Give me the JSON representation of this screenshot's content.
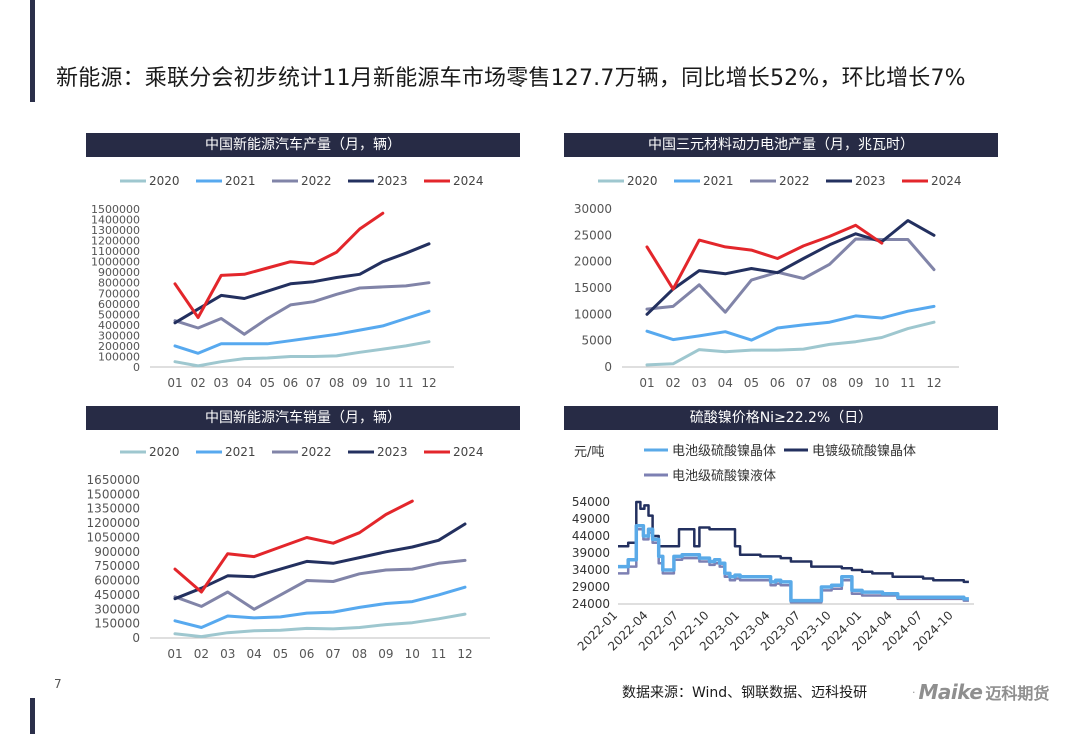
{
  "headline": "新能源：乘联分会初步统计11月新能源车市场零售127.7万辆，同比增长52%，环比增长7%",
  "page_number": "7",
  "source": "数据来源：Wind、钢联数据、迈科投研",
  "logo": {
    "latin": "Maike",
    "cn": "迈科期货",
    "mark": "·"
  },
  "colors": {
    "panel_title_bg": "#272b45",
    "accent": "#2b2f4a"
  },
  "chart_data": [
    {
      "id": "nev-production",
      "type": "line",
      "title": "中国新能源汽车产量（月，辆）",
      "categories": [
        "01",
        "02",
        "03",
        "04",
        "05",
        "06",
        "07",
        "08",
        "09",
        "10",
        "11",
        "12"
      ],
      "ylim": [
        0,
        1500000
      ],
      "yticks": [
        0,
        100000,
        200000,
        300000,
        400000,
        500000,
        600000,
        700000,
        800000,
        900000,
        1000000,
        1100000,
        1200000,
        1300000,
        1400000,
        1500000
      ],
      "series": [
        {
          "name": "2020",
          "color": "#9ec7cf",
          "values": [
            50000,
            10000,
            50000,
            80000,
            85000,
            100000,
            100000,
            105000,
            140000,
            170000,
            200000,
            240000
          ]
        },
        {
          "name": "2021",
          "color": "#57a9ef",
          "values": [
            200000,
            130000,
            220000,
            220000,
            220000,
            250000,
            280000,
            310000,
            350000,
            390000,
            460000,
            530000
          ]
        },
        {
          "name": "2022",
          "color": "#8184a8",
          "values": [
            440000,
            370000,
            460000,
            310000,
            460000,
            590000,
            620000,
            690000,
            750000,
            760000,
            770000,
            800000
          ]
        },
        {
          "name": "2023",
          "color": "#23305f",
          "values": [
            420000,
            550000,
            680000,
            650000,
            720000,
            790000,
            810000,
            850000,
            880000,
            1000000,
            1080000,
            1170000
          ]
        },
        {
          "name": "2024",
          "color": "#e3262b",
          "values": [
            790000,
            470000,
            870000,
            880000,
            940000,
            1000000,
            980000,
            1090000,
            1310000,
            1460000,
            null,
            null
          ]
        }
      ]
    },
    {
      "id": "ternary-battery",
      "type": "line",
      "title": "中国三元材料动力电池产量（月，兆瓦时）",
      "categories": [
        "01",
        "02",
        "03",
        "04",
        "05",
        "06",
        "07",
        "08",
        "09",
        "10",
        "11",
        "12"
      ],
      "ylim": [
        0,
        30000
      ],
      "yticks": [
        0,
        5000,
        10000,
        15000,
        20000,
        25000,
        30000
      ],
      "series": [
        {
          "name": "2020",
          "color": "#9ec7cf",
          "values": [
            400,
            600,
            3300,
            2900,
            3200,
            3200,
            3400,
            4300,
            4800,
            5600,
            7300,
            8500
          ]
        },
        {
          "name": "2021",
          "color": "#57a9ef",
          "values": [
            6800,
            5200,
            5900,
            6700,
            5100,
            7400,
            8000,
            8500,
            9700,
            9300,
            10600,
            11500
          ]
        },
        {
          "name": "2022",
          "color": "#8184a8",
          "values": [
            11000,
            11500,
            15600,
            10400,
            16500,
            18000,
            16800,
            19500,
            24300,
            24200,
            24200,
            18500
          ]
        },
        {
          "name": "2023",
          "color": "#23305f",
          "values": [
            10000,
            14800,
            18300,
            17700,
            18700,
            17900,
            20600,
            23200,
            25300,
            23800,
            27800,
            25000
          ]
        },
        {
          "name": "2024",
          "color": "#e3262b",
          "values": [
            22800,
            14800,
            24100,
            22800,
            22200,
            20600,
            23000,
            24800,
            26900,
            23500,
            null,
            null
          ]
        }
      ]
    },
    {
      "id": "nev-sales",
      "type": "line",
      "title": "中国新能源汽车销量（月，辆）",
      "categories": [
        "01",
        "02",
        "03",
        "04",
        "05",
        "06",
        "07",
        "08",
        "09",
        "10",
        "11",
        "12"
      ],
      "ylim": [
        0,
        1650000
      ],
      "yticks": [
        0,
        150000,
        300000,
        450000,
        600000,
        750000,
        900000,
        1050000,
        1200000,
        1350000,
        1500000,
        1650000
      ],
      "series": [
        {
          "name": "2020",
          "color": "#9ec7cf",
          "values": [
            45000,
            15000,
            55000,
            75000,
            80000,
            100000,
            95000,
            110000,
            140000,
            160000,
            200000,
            250000
          ]
        },
        {
          "name": "2021",
          "color": "#57a9ef",
          "values": [
            180000,
            110000,
            230000,
            210000,
            220000,
            260000,
            270000,
            320000,
            360000,
            380000,
            450000,
            530000
          ]
        },
        {
          "name": "2022",
          "color": "#8184a8",
          "values": [
            430000,
            330000,
            480000,
            300000,
            450000,
            600000,
            590000,
            670000,
            710000,
            720000,
            780000,
            810000
          ]
        },
        {
          "name": "2023",
          "color": "#23305f",
          "values": [
            410000,
            520000,
            650000,
            640000,
            720000,
            800000,
            780000,
            840000,
            900000,
            950000,
            1020000,
            1190000
          ]
        },
        {
          "name": "2024",
          "color": "#e3262b",
          "values": [
            720000,
            480000,
            880000,
            850000,
            950000,
            1050000,
            990000,
            1100000,
            1290000,
            1430000,
            null,
            null
          ]
        }
      ]
    },
    {
      "id": "nickel-sulfate",
      "type": "line",
      "title": "硫酸镍价格Ni≥22.2%（日）",
      "unit_label": "元/吨",
      "ylim": [
        24000,
        54000
      ],
      "yticks": [
        24000,
        29000,
        34000,
        39000,
        44000,
        49000,
        54000
      ],
      "xlim": [
        0,
        35
      ],
      "x_ticks": [
        "2022-01",
        "2022-04",
        "2022-07",
        "2022-10",
        "2023-01",
        "2023-04",
        "2023-07",
        "2023-10",
        "2024-01",
        "2024-04",
        "2024-07",
        "2024-10"
      ],
      "series": [
        {
          "name": "电池级硫酸镍晶体",
          "color": "#5aaae8",
          "x": [
            0,
            1,
            1.8,
            2.5,
            3,
            3.4,
            4,
            4.4,
            5,
            5.5,
            6.3,
            7,
            8,
            9,
            9.5,
            10,
            10.5,
            11,
            11.5,
            12,
            13,
            14,
            15,
            15.5,
            16,
            17,
            17.5,
            18,
            19,
            20,
            20.5,
            21,
            22,
            23,
            24,
            25,
            26,
            27,
            27.5,
            28,
            28.5,
            29,
            30,
            31,
            32,
            33,
            34,
            34.5
          ],
          "values": [
            35000,
            37000,
            47000,
            44000,
            46000,
            43000,
            38000,
            34000,
            34000,
            38000,
            38500,
            38500,
            37500,
            36500,
            37000,
            36000,
            33000,
            32000,
            32500,
            32000,
            32000,
            32000,
            30500,
            31000,
            30500,
            25000,
            25000,
            25000,
            25000,
            29000,
            29000,
            29500,
            32000,
            28000,
            27500,
            27500,
            27000,
            27000,
            26000,
            26000,
            26000,
            26000,
            26000,
            26000,
            26000,
            26000,
            25500,
            25500
          ]
        },
        {
          "name": "电镀级硫酸镍晶体",
          "color": "#23305f",
          "x": [
            0,
            1,
            1.8,
            2.2,
            2.6,
            3,
            3.4,
            4,
            5,
            6,
            7,
            7.5,
            8,
            9,
            10,
            11,
            11.5,
            12,
            13,
            14,
            16,
            17,
            19,
            20,
            21,
            22,
            23,
            24,
            25,
            26,
            27,
            28,
            30,
            31,
            32,
            33,
            34,
            34.5
          ],
          "values": [
            41000,
            42000,
            54000,
            52000,
            53000,
            50000,
            44000,
            41000,
            41000,
            46000,
            46000,
            41000,
            46500,
            46000,
            46000,
            46000,
            41000,
            38500,
            38500,
            38000,
            37500,
            36500,
            35000,
            35000,
            35000,
            34500,
            34000,
            33500,
            33000,
            33000,
            32000,
            32000,
            31500,
            31000,
            31000,
            31000,
            30500,
            30500
          ]
        },
        {
          "name": "电池级硫酸镍液体",
          "color": "#7d80b3",
          "x": [
            0,
            1,
            1.8,
            2.5,
            3,
            3.4,
            4,
            4.4,
            5,
            5.5,
            6.3,
            7,
            8,
            9,
            9.5,
            10,
            10.5,
            11,
            11.5,
            12,
            13,
            14,
            15,
            15.5,
            16,
            17,
            17.5,
            18,
            19,
            20,
            20.5,
            21,
            22,
            23,
            24,
            25,
            26,
            27,
            27.5,
            28,
            28.5,
            29,
            30,
            31,
            32,
            33,
            34,
            34.5
          ],
          "values": [
            33000,
            35000,
            46000,
            43000,
            45000,
            42000,
            36000,
            33000,
            33000,
            37000,
            37500,
            37500,
            36500,
            35500,
            36000,
            35000,
            32000,
            31000,
            31500,
            31000,
            31000,
            31000,
            29500,
            30000,
            29500,
            24500,
            24500,
            24500,
            24500,
            28000,
            28000,
            28500,
            31000,
            27000,
            26500,
            26500,
            26500,
            26500,
            25500,
            25500,
            25500,
            25500,
            25500,
            25500,
            25500,
            25500,
            25000,
            25000
          ]
        }
      ]
    }
  ]
}
